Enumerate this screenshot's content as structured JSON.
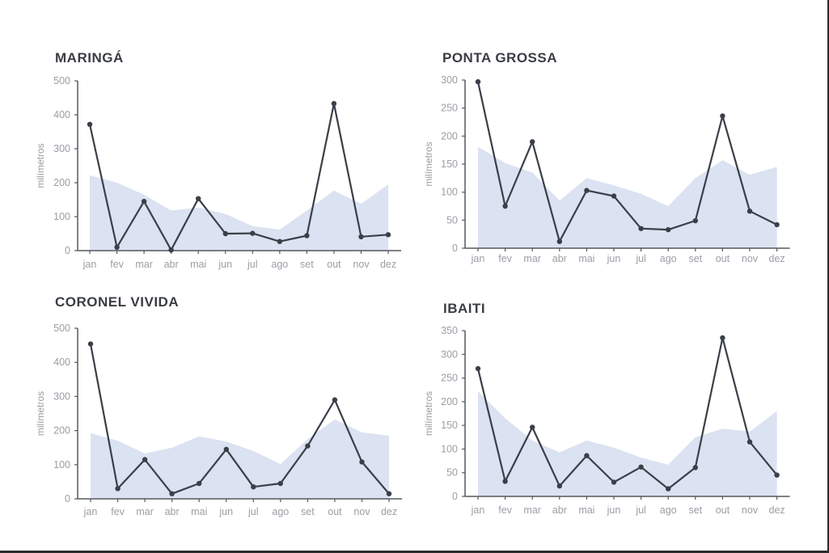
{
  "chart_data": [
    {
      "type": "line",
      "title": "MARINGÁ",
      "ylabel": "milímetros",
      "categories": [
        "jan",
        "fev",
        "mar",
        "abr",
        "mai",
        "jun",
        "jul",
        "ago",
        "set",
        "out",
        "nov",
        "dez"
      ],
      "yticks": [
        0,
        100,
        200,
        300,
        400,
        500
      ],
      "ylim": [
        0,
        500
      ],
      "series": [
        {
          "style": "area",
          "values": [
            222,
            200,
            165,
            118,
            127,
            108,
            72,
            62,
            118,
            177,
            138,
            195
          ]
        },
        {
          "style": "line",
          "values": [
            372,
            10,
            145,
            2,
            153,
            50,
            51,
            27,
            44,
            433,
            41,
            47
          ]
        }
      ]
    },
    {
      "type": "line",
      "title": "PONTA GROSSA",
      "ylabel": "milímetros",
      "categories": [
        "jan",
        "fev",
        "mar",
        "abr",
        "mai",
        "jun",
        "jul",
        "ago",
        "set",
        "out",
        "nov",
        "dez"
      ],
      "yticks": [
        0,
        50,
        100,
        150,
        200,
        250,
        300
      ],
      "ylim": [
        0,
        300
      ],
      "series": [
        {
          "style": "area",
          "values": [
            181,
            152,
            135,
            85,
            125,
            112,
            97,
            75,
            125,
            157,
            131,
            145
          ]
        },
        {
          "style": "line",
          "values": [
            297,
            75,
            190,
            12,
            103,
            93,
            35,
            33,
            49,
            236,
            66,
            42
          ]
        }
      ]
    },
    {
      "type": "line",
      "title": "CORONEL VIVIDA",
      "ylabel": "milímetros",
      "categories": [
        "jan",
        "fev",
        "mar",
        "abr",
        "mai",
        "jun",
        "jul",
        "ago",
        "set",
        "out",
        "nov",
        "dez"
      ],
      "yticks": [
        0,
        100,
        200,
        300,
        400,
        500
      ],
      "ylim": [
        0,
        500
      ],
      "series": [
        {
          "style": "area",
          "values": [
            193,
            170,
            133,
            150,
            183,
            168,
            140,
            102,
            175,
            233,
            195,
            185
          ]
        },
        {
          "style": "line",
          "values": [
            454,
            30,
            115,
            15,
            45,
            145,
            35,
            45,
            155,
            290,
            108,
            15
          ]
        }
      ]
    },
    {
      "type": "line",
      "title": "IBAITI",
      "ylabel": "milímetros",
      "categories": [
        "jan",
        "fev",
        "mar",
        "abr",
        "mai",
        "jun",
        "jul",
        "ago",
        "set",
        "out",
        "nov",
        "dez"
      ],
      "yticks": [
        0,
        50,
        100,
        150,
        200,
        250,
        300,
        350
      ],
      "ylim": [
        0,
        350
      ],
      "series": [
        {
          "style": "area",
          "values": [
            222,
            165,
            118,
            93,
            118,
            103,
            82,
            67,
            125,
            143,
            137,
            180
          ]
        },
        {
          "style": "line",
          "values": [
            270,
            32,
            146,
            22,
            86,
            30,
            62,
            16,
            61,
            335,
            115,
            45
          ]
        }
      ]
    }
  ]
}
